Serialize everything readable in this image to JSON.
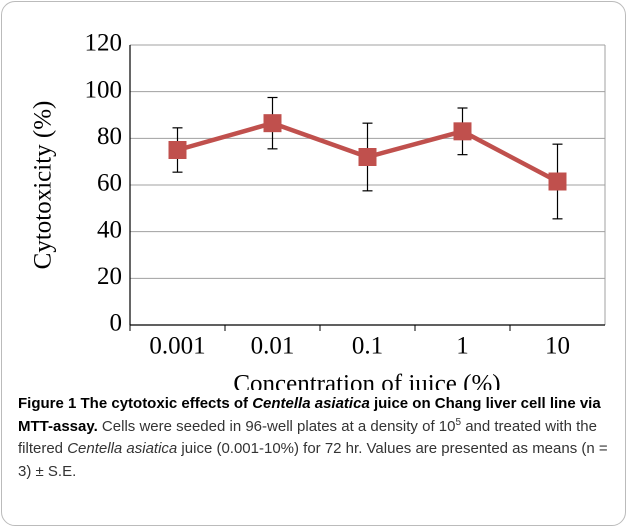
{
  "chart_data": {
    "type": "line",
    "categories": [
      "0.001",
      "0.01",
      "0.1",
      "1",
      "10"
    ],
    "series": [
      {
        "name": "Cytotoxicity",
        "color": "#c0504d",
        "values": [
          75,
          86.5,
          72,
          83,
          61.5
        ],
        "errors": [
          9.5,
          11,
          14.5,
          10,
          16
        ]
      }
    ],
    "ylim": [
      0,
      120
    ],
    "yticks": [
      0,
      20,
      40,
      60,
      80,
      100,
      120
    ],
    "grid": true,
    "ylabel": "Cytotoxicity (%)",
    "xlabel": "Concentration  of juice (%)"
  },
  "caption": [
    {
      "text": "Figure 1 The cytotoxic effects of ",
      "style": "bold"
    },
    {
      "text": "Centella asiatica",
      "style": "bolditalic"
    },
    {
      "text": " juice on Chang liver cell line via MTT-assay.",
      "style": "bold"
    },
    {
      "text": " Cells were seeded in 96-well plates at a density of 10",
      "style": "normal"
    },
    {
      "text": "5",
      "style": "sup"
    },
    {
      "text": " and treated with the filtered ",
      "style": "normal"
    },
    {
      "text": "Centella asiatica",
      "style": "italic"
    },
    {
      "text": " juice (0.001-10%) for 72 hr. Values are presented as means (n = 3) ± S.E.",
      "style": "normal"
    }
  ]
}
